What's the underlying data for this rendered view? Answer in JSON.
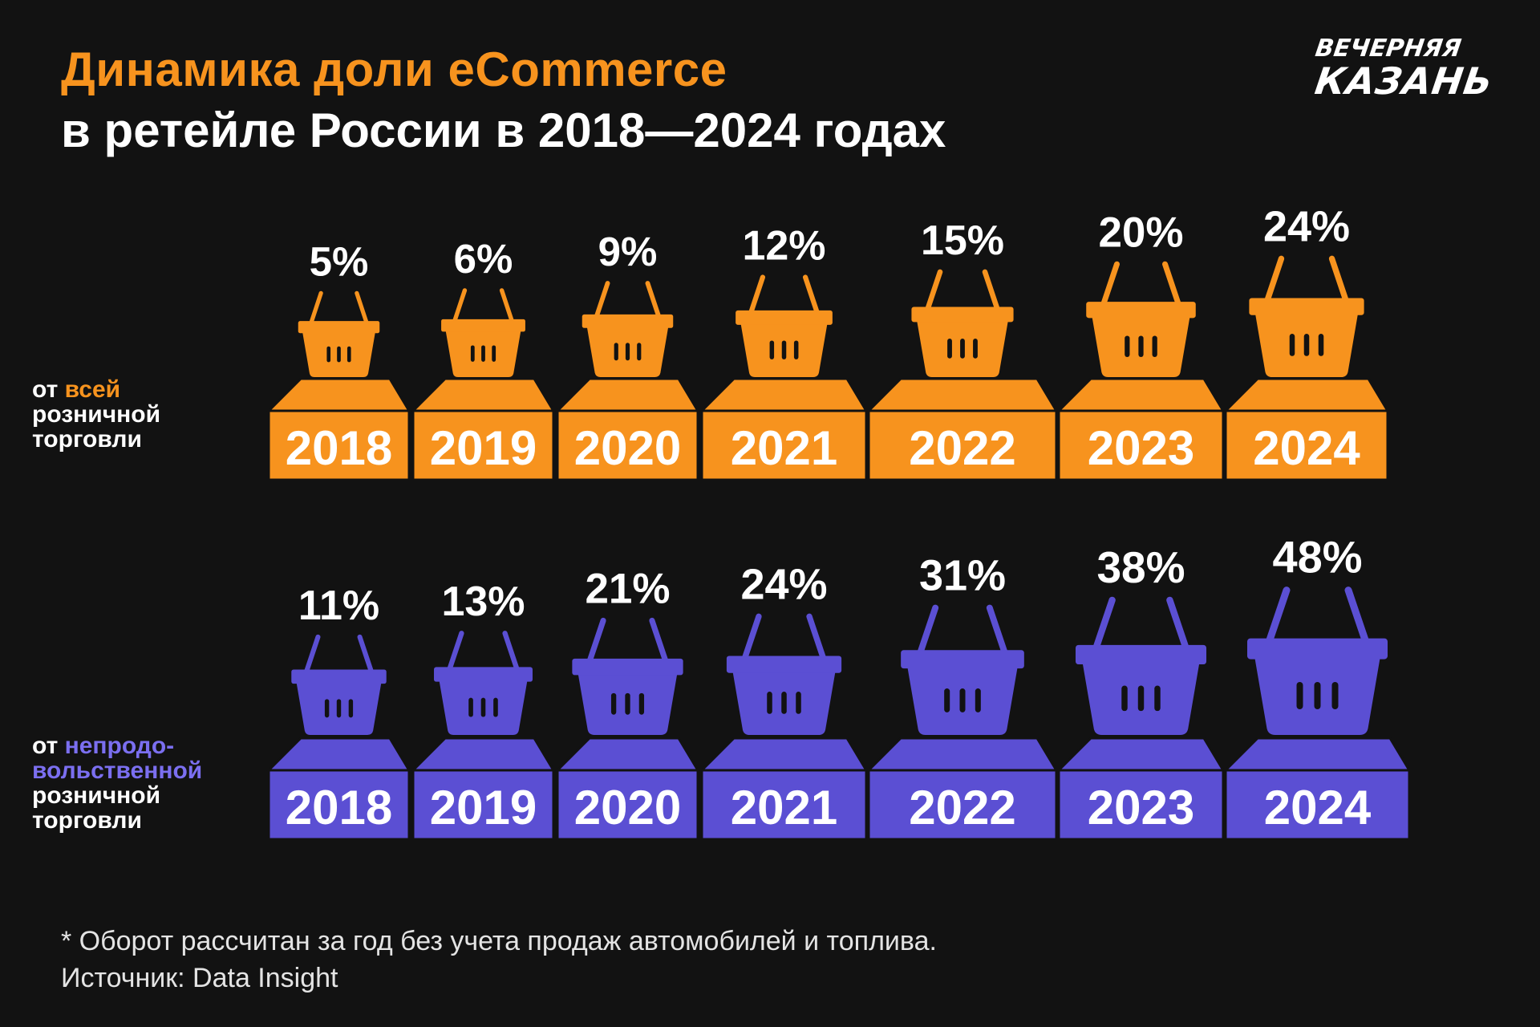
{
  "header": {
    "title_accent": "Динамика доли eCommerce",
    "title_rest": "в ретейле России в 2018—2024 годах",
    "logo_line1": "ВЕЧЕРНЯЯ",
    "logo_line2": "КАЗАНЬ"
  },
  "colors": {
    "orange": "#F7931E",
    "purple": "#5B4FD3",
    "background": "#121212",
    "text": "#FFFFFF"
  },
  "rows": [
    {
      "label_prefix": "от ",
      "label_highlight": "всей",
      "label_rest_lines": [
        "розничной",
        "торговли"
      ],
      "color_key": "orange"
    },
    {
      "label_prefix": "от ",
      "label_highlight": "непродо-",
      "label_rest_lines": [
        "вольственной",
        "розничной",
        "торговли"
      ],
      "color_key": "purple"
    }
  ],
  "chart_data": {
    "type": "bar",
    "title": "Динамика доли eCommerce в ретейле России в 2018—2024 годах",
    "xlabel": "",
    "ylabel": "",
    "categories": [
      "2018",
      "2019",
      "2020",
      "2021",
      "2022",
      "2023",
      "2024"
    ],
    "series": [
      {
        "name": "от всей розничной торговли",
        "values": [
          5,
          6,
          9,
          12,
          15,
          20,
          24
        ],
        "labels": [
          "5%",
          "6%",
          "9%",
          "12%",
          "15%",
          "20%",
          "24%"
        ]
      },
      {
        "name": "от непродовольственной розничной торговли",
        "values": [
          11,
          13,
          21,
          24,
          31,
          38,
          48
        ],
        "labels": [
          "11%",
          "13%",
          "21%",
          "24%",
          "31%",
          "38%",
          "48%"
        ]
      }
    ],
    "unit": "%"
  },
  "footnote": {
    "note": "* Оборот рассчитан за год без учета продаж автомобилей и топлива.",
    "source": "Источник: Data Insight"
  }
}
